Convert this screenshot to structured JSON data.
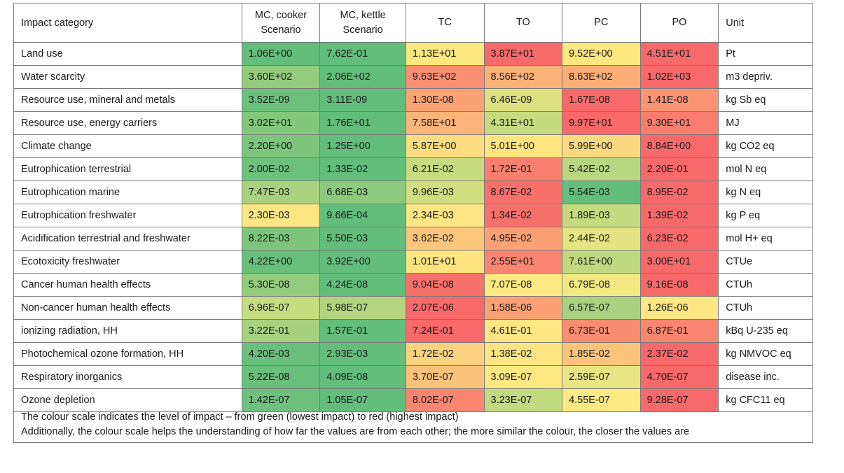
{
  "headers": [
    "Impact category",
    "MC, cooker Scenario",
    "MC, kettle Scenario",
    "TC",
    "TO",
    "PC",
    "PO",
    "Unit"
  ],
  "rows": [
    {
      "category": "Land use",
      "values": [
        "1.06E+00",
        "7.62E-01",
        "1.13E+01",
        "3.87E+01",
        "9.52E+00",
        "4.51E+01"
      ],
      "colors": [
        "#63be7b",
        "#63be7b",
        "#fde77f",
        "#f8696b",
        "#fde77f",
        "#f8696b"
      ],
      "unit": "Pt"
    },
    {
      "category": "Water scarcity",
      "values": [
        "3.60E+02",
        "2.06E+02",
        "9.63E+02",
        "8.56E+02",
        "8.63E+02",
        "1.02E+03"
      ],
      "colors": [
        "#93cc7d",
        "#63be7b",
        "#fa8f72",
        "#fbb278",
        "#fbaf77",
        "#f8696b"
      ],
      "unit": "m3 depriv."
    },
    {
      "category": "Resource use, mineral and metals",
      "values": [
        "3.52E-09",
        "3.11E-09",
        "1.30E-08",
        "6.46E-09",
        "1.67E-08",
        "1.41E-08"
      ],
      "colors": [
        "#6cc17c",
        "#63be7b",
        "#fba274",
        "#dde281",
        "#f8696b",
        "#fa9473"
      ],
      "unit": "kg Sb eq"
    },
    {
      "category": "Resource use, energy carriers",
      "values": [
        "3.02E+01",
        "1.76E+01",
        "7.58E+01",
        "4.31E+01",
        "9.97E+01",
        "9.30E+01"
      ],
      "colors": [
        "#82c77c",
        "#63be7b",
        "#fbb479",
        "#c6db80",
        "#f8696b",
        "#f97e6f"
      ],
      "unit": "MJ"
    },
    {
      "category": "Climate change",
      "values": [
        "2.20E+00",
        "1.25E+00",
        "5.87E+00",
        "5.01E+00",
        "5.99E+00",
        "8.84E+00"
      ],
      "colors": [
        "#7dc57c",
        "#63be7b",
        "#fddd7f",
        "#fde67f",
        "#fbd97e",
        "#f8696b"
      ],
      "unit": "kg CO2 eq"
    },
    {
      "category": "Eutrophication terrestrial",
      "values": [
        "2.00E-02",
        "1.33E-02",
        "6.21E-02",
        "1.72E-01",
        "5.42E-02",
        "2.20E-01"
      ],
      "colors": [
        "#6cc17c",
        "#63be7b",
        "#c7dc80",
        "#f9806f",
        "#b9d780",
        "#f8696b"
      ],
      "unit": "mol N eq"
    },
    {
      "category": "Eutrophication marine",
      "values": [
        "7.47E-03",
        "6.68E-03",
        "9.96E-03",
        "8.67E-02",
        "5.54E-03",
        "8.95E-02"
      ],
      "colors": [
        "#a9d27f",
        "#8dca7e",
        "#d0de81",
        "#f8706c",
        "#63be7b",
        "#f8696b"
      ],
      "unit": "kg N eq"
    },
    {
      "category": "Eutrophication freshwater",
      "values": [
        "2.30E-03",
        "9.66E-04",
        "2.34E-03",
        "1.34E-02",
        "1.89E-03",
        "1.39E-02"
      ],
      "colors": [
        "#fde683",
        "#63be7b",
        "#fde683",
        "#f8706c",
        "#c4db80",
        "#f8696b"
      ],
      "unit": "kg P eq"
    },
    {
      "category": "Acidification terrestrial and freshwater",
      "values": [
        "8.22E-03",
        "5.50E-03",
        "3.62E-02",
        "4.95E-02",
        "2.44E-02",
        "6.23E-02"
      ],
      "colors": [
        "#7dc57c",
        "#63be7b",
        "#fcc67b",
        "#fba175",
        "#e5e482",
        "#f8696b"
      ],
      "unit": "mol H+ eq"
    },
    {
      "category": "Ecotoxicity freshwater",
      "values": [
        "4.22E+00",
        "3.92E+00",
        "1.01E+01",
        "2.55E+01",
        "7.61E+00",
        "3.00E+01"
      ],
      "colors": [
        "#68c07b",
        "#63be7b",
        "#fde47f",
        "#f98570",
        "#c0d980",
        "#f8696b"
      ],
      "unit": "CTUe"
    },
    {
      "category": "Cancer human health effects",
      "values": [
        "5.30E-08",
        "4.24E-08",
        "9.04E-08",
        "7.07E-08",
        "6.79E-08",
        "9.16E-08"
      ],
      "colors": [
        "#93cc7d",
        "#63be7b",
        "#f8716c",
        "#fde982",
        "#f3e882",
        "#f8696b"
      ],
      "unit": "CTUh"
    },
    {
      "category": "Non-cancer human health effects",
      "values": [
        "6.96E-07",
        "5.98E-07",
        "2.07E-06",
        "1.58E-06",
        "6.57E-07",
        "1.26E-06"
      ],
      "colors": [
        "#c6dc80",
        "#b3d580",
        "#f8696b",
        "#fba174",
        "#a8d27f",
        "#fde683"
      ],
      "unit": "CTUh"
    },
    {
      "category": "ionizing radiation, HH",
      "values": [
        "3.22E-01",
        "1.57E-01",
        "7.24E-01",
        "4.61E-01",
        "6.73E-01",
        "6.87E-01"
      ],
      "colors": [
        "#a6d27f",
        "#63be7b",
        "#f8696b",
        "#fde683",
        "#fa8c71",
        "#fa8570"
      ],
      "unit": "kBq U-235 eq"
    },
    {
      "category": "Photochemical ozone formation, HH",
      "values": [
        "4.20E-03",
        "2.93E-03",
        "1.72E-02",
        "1.38E-02",
        "1.85E-02",
        "2.37E-02"
      ],
      "colors": [
        "#69bf7b",
        "#63be7b",
        "#fcd27e",
        "#fde582",
        "#fbc47a",
        "#f8696b"
      ],
      "unit": "kg NMVOC eq"
    },
    {
      "category": "Respiratory inorganics",
      "values": [
        "5.22E-08",
        "4.09E-08",
        "3.70E-07",
        "3.09E-07",
        "2.59E-07",
        "4.70E-07"
      ],
      "colors": [
        "#69bf7b",
        "#63be7b",
        "#fbc37a",
        "#fde882",
        "#e8e582",
        "#f8696b"
      ],
      "unit": "disease inc."
    },
    {
      "category": "Ozone depletion",
      "values": [
        "1.42E-07",
        "1.05E-07",
        "8.02E-07",
        "3.23E-07",
        "4.55E-07",
        "9.28E-07"
      ],
      "colors": [
        "#6ec17c",
        "#63be7b",
        "#f9866f",
        "#c2da80",
        "#fdea83",
        "#f8696b"
      ],
      "unit": "kg CFC11 eq"
    }
  ],
  "footnote": {
    "line1": "The colour scale indicates the level of impact – from green (lowest impact) to red (highest impact)",
    "line2": "Additionally, the colour scale helps the understanding of how far the values are from each other; the more similar the colour, the closer the values are"
  }
}
